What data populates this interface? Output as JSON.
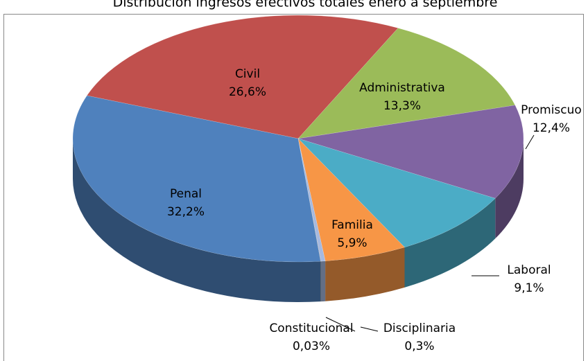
{
  "chart_data": {
    "type": "pie3d",
    "title": "Distribución ingresos efectivos totales enero a septiembre",
    "categories": [
      "Civil",
      "Administrativa",
      "Promiscuo",
      "Laboral",
      "Familia",
      "Disciplinaria",
      "Constitucional",
      "Penal"
    ],
    "values": [
      26.6,
      13.3,
      12.4,
      9.1,
      5.9,
      0.3,
      0.03,
      32.2
    ],
    "value_labels": [
      "26,6%",
      "13,3%",
      "12,4%",
      "9,1%",
      "5,9%",
      "0,3%",
      "0,03%",
      "32,2%"
    ],
    "colors": [
      "#c0504d",
      "#9bbb59",
      "#8064a2",
      "#4bacc6",
      "#f79646",
      "#a5b9e0",
      "#8c8c8c",
      "#4f81bd"
    ]
  }
}
